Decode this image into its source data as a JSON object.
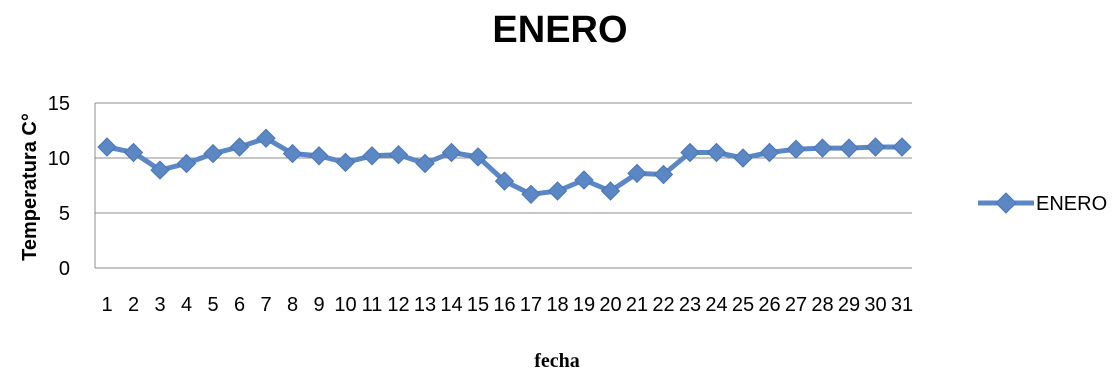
{
  "chart_data": {
    "type": "line",
    "title": "ENERO",
    "xlabel": "fecha",
    "ylabel": "Temperatura C°",
    "ylim": [
      0,
      15
    ],
    "yticks": [
      0,
      5,
      10,
      15
    ],
    "grid": true,
    "legend_position": "right",
    "categories": [
      "1",
      "2",
      "3",
      "4",
      "5",
      "6",
      "7",
      "8",
      "9",
      "10",
      "11",
      "12",
      "13",
      "14",
      "15",
      "16",
      "17",
      "18",
      "19",
      "20",
      "21",
      "22",
      "23",
      "24",
      "25",
      "26",
      "27",
      "28",
      "29",
      "30",
      "31"
    ],
    "series": [
      {
        "name": "ENERO",
        "color": "#5B87C5",
        "marker": "diamond",
        "values": [
          11.0,
          10.5,
          8.9,
          9.5,
          10.4,
          11.0,
          11.8,
          10.4,
          10.2,
          9.6,
          10.2,
          10.3,
          9.5,
          10.5,
          10.1,
          7.9,
          6.7,
          7.0,
          8.0,
          7.0,
          8.6,
          8.5,
          10.5,
          10.5,
          10.0,
          10.5,
          10.8,
          10.9,
          10.9,
          11.0,
          11.0
        ]
      }
    ]
  }
}
